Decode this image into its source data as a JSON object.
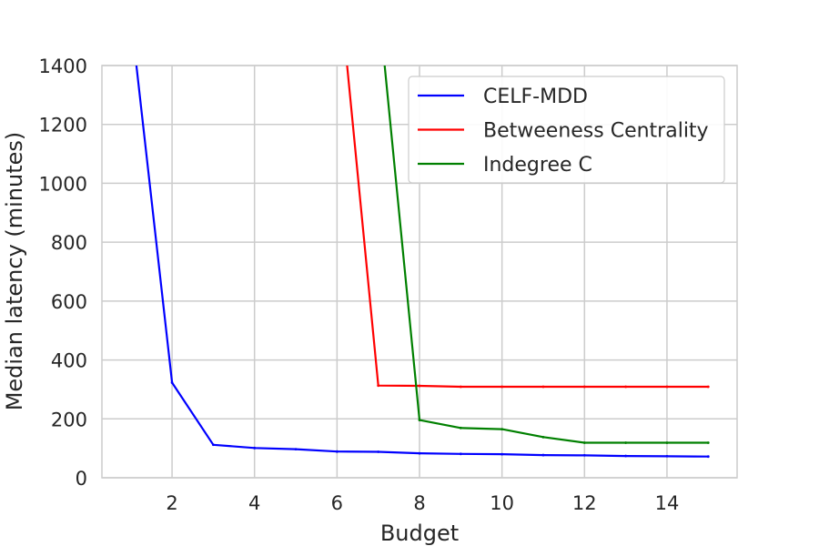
{
  "chart_data": {
    "type": "line",
    "title": "",
    "xlabel": "Budget",
    "ylabel": "Median latency (minutes)",
    "xlim": [
      0.3,
      15.7
    ],
    "ylim": [
      0,
      1400
    ],
    "xticks": [
      2,
      4,
      6,
      8,
      10,
      12,
      14
    ],
    "yticks": [
      0,
      200,
      400,
      600,
      800,
      1000,
      1200,
      1400
    ],
    "grid": true,
    "legend_position": "top-right",
    "series": [
      {
        "name": "CELF-MDD",
        "color": "#0000ff",
        "x": [
          1,
          2,
          3,
          4,
          5,
          6,
          7,
          8,
          9,
          10,
          11,
          12,
          13,
          14,
          15
        ],
        "y": [
          1570,
          323,
          112,
          101,
          97,
          89,
          88,
          83,
          81,
          80,
          77,
          76,
          74,
          73,
          72
        ]
      },
      {
        "name": "Betweeness Centrality",
        "color": "#ff0000",
        "x": [
          6,
          7,
          8,
          9,
          10,
          11,
          12,
          13,
          14,
          15
        ],
        "y": [
          1750,
          313,
          312,
          309,
          309,
          309,
          309,
          309,
          309,
          309
        ]
      },
      {
        "name": "Indegree C",
        "color": "#008000",
        "x": [
          7,
          8,
          9,
          10,
          11,
          12,
          13,
          14,
          15
        ],
        "y": [
          1620,
          196,
          169,
          165,
          138,
          119,
          119,
          119,
          119
        ]
      }
    ]
  }
}
